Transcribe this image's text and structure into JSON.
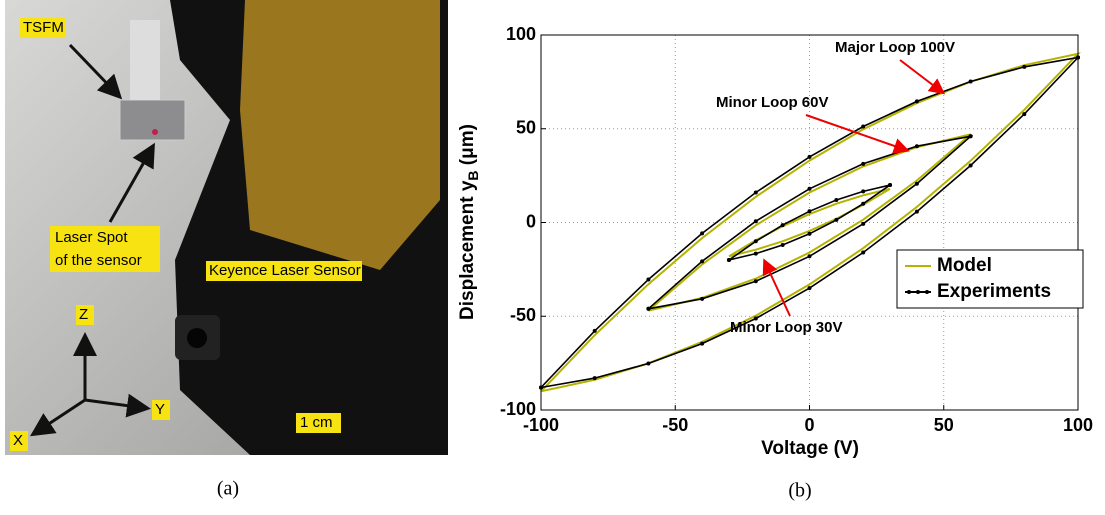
{
  "photo": {
    "labels": [
      "TSFM",
      "Laser Spot",
      "of the sensor",
      "Keyence Laser Sensor",
      "Z",
      "Y",
      "X",
      "1 cm"
    ]
  },
  "captions": [
    "(a)",
    "(b)"
  ],
  "chart_data": {
    "type": "line",
    "xlabel": "Voltage (V)",
    "ylabel_parts": [
      "Displacement y",
      "B",
      " (μm)"
    ],
    "xlim": [
      -100,
      100
    ],
    "ylim": [
      -100,
      100
    ],
    "xticks": [
      -100,
      -50,
      0,
      50,
      100
    ],
    "yticks": [
      -100,
      -50,
      0,
      50,
      100
    ],
    "grid": true,
    "legend": "center right",
    "x": [
      -100,
      -80,
      -60,
      -40,
      -20,
      0,
      20,
      40,
      60,
      80,
      100,
      100,
      80,
      60,
      40,
      20,
      0,
      -20,
      -40,
      -60,
      -80,
      -100,
      null,
      -60,
      -40,
      -20,
      0,
      20,
      40,
      60,
      60,
      40,
      20,
      0,
      -20,
      -40,
      -60,
      null,
      -30,
      -20,
      -10,
      0,
      10,
      20,
      30,
      30,
      20,
      10,
      0,
      -10,
      -20,
      -30
    ],
    "series": [
      {
        "name": "Model",
        "color": "#b5b300",
        "values": [
          -90,
          -83.9,
          -75.1,
          -63.7,
          -49.7,
          -33,
          -13.7,
          8.3,
          32.9,
          60.1,
          90,
          90,
          83.9,
          75.1,
          63.7,
          49.7,
          33,
          13.7,
          -8.3,
          -32.9,
          -60.1,
          -90,
          null,
          -47,
          -40.2,
          -29.9,
          -16,
          1.5,
          22.4,
          47,
          47,
          40.2,
          29.9,
          16,
          -1.5,
          -22.4,
          -47,
          null,
          -18,
          -14.5,
          -10,
          -4.5,
          2,
          9.5,
          18,
          18,
          14.5,
          10,
          4.5,
          -2,
          -9.5,
          -18
        ]
      },
      {
        "name": "Experiments",
        "color": "#000000",
        "markers": true,
        "values": [
          -88,
          -83,
          -75.2,
          -64.6,
          -51.2,
          -35,
          -16,
          5.8,
          30.4,
          57.8,
          88,
          88,
          83,
          75.2,
          64.6,
          51.2,
          35,
          16,
          -5.8,
          -30.4,
          -57.8,
          -88,
          null,
          -46,
          -40.7,
          -31.3,
          -18,
          -0.7,
          20.7,
          46,
          46,
          40.7,
          31.3,
          18,
          0.7,
          -20.7,
          -46,
          null,
          -20,
          -16.6,
          -12,
          -6,
          1.4,
          10,
          20,
          20,
          16.6,
          12,
          6,
          -1.4,
          -10,
          -20
        ]
      }
    ],
    "annotations": [
      {
        "text": "Major Loop 100V"
      },
      {
        "text": "Minor Loop 60V"
      },
      {
        "text": "Minor Loop 30V"
      }
    ]
  }
}
